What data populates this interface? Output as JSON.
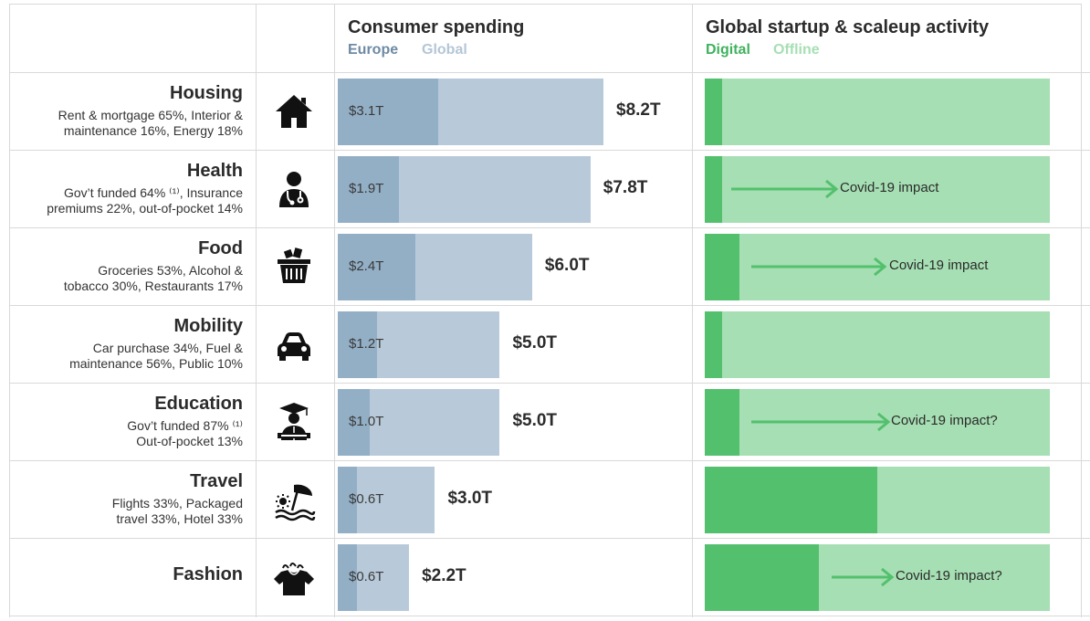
{
  "header": {
    "spending_title": "Consumer spending",
    "spending_legend_europe": "Europe",
    "spending_legend_global": "Global",
    "startup_title": "Global startup & scaleup activity",
    "startup_legend_digital": "Digital",
    "startup_legend_offline": "Offline"
  },
  "colors": {
    "europe": "#93afc6",
    "global": "#b8cad9",
    "digital": "#53c06e",
    "offline": "#a6dfb3",
    "arrow": "#53c06e",
    "grid": "#d9d9d9"
  },
  "rows": [
    {
      "category": "Housing",
      "sub_lines": [
        "Rent & mortgage 65%, Interior &",
        "maintenance 16%, Energy 18%"
      ],
      "icon": "house-icon",
      "europe_value": 3.1,
      "europe_label": "$3.1T",
      "global_value": 8.2,
      "global_label": "$8.2T",
      "digital_share": 0.05,
      "covid_label": ""
    },
    {
      "category": "Health",
      "sub_lines": [
        "Gov’t funded 64% ⁽¹⁾, Insurance",
        "premiums 22%, out-of-pocket 14%"
      ],
      "icon": "doctor-icon",
      "europe_value": 1.9,
      "europe_label": "$1.9T",
      "global_value": 7.8,
      "global_label": "$7.8T",
      "digital_share": 0.05,
      "covid_label": "Covid-19 impact"
    },
    {
      "category": "Food",
      "sub_lines": [
        "Groceries 53%, Alcohol &",
        "tobacco 30%, Restaurants 17%"
      ],
      "icon": "basket-icon",
      "europe_value": 2.4,
      "europe_label": "$2.4T",
      "global_value": 6.0,
      "global_label": "$6.0T",
      "digital_share": 0.1,
      "covid_label": "Covid-19 impact"
    },
    {
      "category": "Mobility",
      "sub_lines": [
        "Car purchase 34%, Fuel &",
        "maintenance 56%, Public 10%"
      ],
      "icon": "car-icon",
      "europe_value": 1.2,
      "europe_label": "$1.2T",
      "global_value": 5.0,
      "global_label": "$5.0T",
      "digital_share": 0.05,
      "covid_label": ""
    },
    {
      "category": "Education",
      "sub_lines": [
        "Gov’t funded 87% ⁽¹⁾",
        "Out-of-pocket 13%"
      ],
      "icon": "graduate-icon",
      "europe_value": 1.0,
      "europe_label": "$1.0T",
      "global_value": 5.0,
      "global_label": "$5.0T",
      "digital_share": 0.1,
      "covid_label": "Covid-19 impact?"
    },
    {
      "category": "Travel",
      "sub_lines": [
        "Flights 33%, Packaged",
        "travel 33%, Hotel 33%"
      ],
      "icon": "beach-icon",
      "europe_value": 0.6,
      "europe_label": "$0.6T",
      "global_value": 3.0,
      "global_label": "$3.0T",
      "digital_share": 0.5,
      "covid_label": ""
    },
    {
      "category": "Fashion",
      "sub_lines": [],
      "icon": "shirt-icon",
      "europe_value": 0.6,
      "europe_label": "$0.6T",
      "global_value": 2.2,
      "global_label": "$2.2T",
      "digital_share": 0.33,
      "covid_label": "Covid-19 impact?"
    }
  ],
  "chart_data": [
    {
      "type": "bar",
      "title": "Consumer spending",
      "orientation": "horizontal",
      "categories": [
        "Housing",
        "Health",
        "Food",
        "Mobility",
        "Education",
        "Travel",
        "Fashion"
      ],
      "series": [
        {
          "name": "Europe",
          "values": [
            3.1,
            1.9,
            2.4,
            1.2,
            1.0,
            0.6,
            0.6
          ]
        },
        {
          "name": "Global",
          "values": [
            8.2,
            7.8,
            6.0,
            5.0,
            5.0,
            3.0,
            2.2
          ]
        }
      ],
      "value_unit": "$T",
      "legend": "top-left"
    },
    {
      "type": "bar",
      "title": "Global startup & scaleup activity",
      "orientation": "horizontal",
      "stacked": true,
      "categories": [
        "Housing",
        "Health",
        "Food",
        "Mobility",
        "Education",
        "Travel",
        "Fashion"
      ],
      "series": [
        {
          "name": "Digital",
          "values": [
            0.05,
            0.05,
            0.1,
            0.05,
            0.1,
            0.5,
            0.33
          ]
        },
        {
          "name": "Offline",
          "values": [
            0.95,
            0.95,
            0.9,
            0.95,
            0.9,
            0.5,
            0.67
          ]
        }
      ],
      "annotations": [
        {
          "category": "Health",
          "text": "Covid-19 impact"
        },
        {
          "category": "Food",
          "text": "Covid-19 impact"
        },
        {
          "category": "Education",
          "text": "Covid-19 impact?"
        },
        {
          "category": "Fashion",
          "text": "Covid-19 impact?"
        }
      ],
      "legend": "top-left"
    }
  ]
}
